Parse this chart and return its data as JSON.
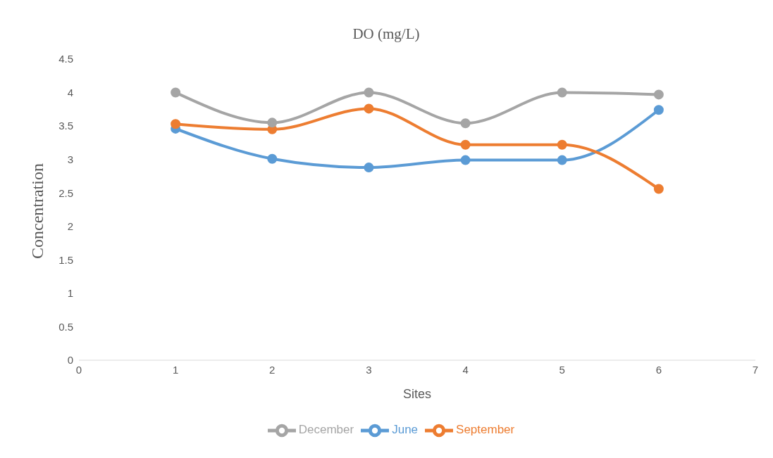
{
  "chart_data": {
    "type": "line",
    "title": "DO (mg/L)",
    "xlabel": "Sites",
    "ylabel": "Concentration",
    "x": [
      1,
      2,
      3,
      4,
      5,
      6
    ],
    "series": [
      {
        "name": "June",
        "color": "#5b9bd5",
        "values": [
          3.46,
          3.01,
          2.88,
          2.99,
          2.99,
          3.74
        ]
      },
      {
        "name": "September",
        "color": "#ed7d31",
        "values": [
          3.53,
          3.45,
          3.76,
          3.22,
          3.22,
          2.56
        ]
      },
      {
        "name": "December",
        "color": "#a5a5a5",
        "values": [
          4.0,
          3.55,
          4.0,
          3.54,
          4.0,
          3.97
        ]
      }
    ],
    "xlim": [
      0,
      7
    ],
    "xticks": [
      0,
      1,
      2,
      3,
      4,
      5,
      6,
      7
    ],
    "ylim": [
      0,
      4.5
    ],
    "yticks": [
      0,
      0.5,
      1,
      1.5,
      2,
      2.5,
      3,
      3.5,
      4,
      4.5
    ],
    "legend": "bottom",
    "marker": "circle",
    "line_style": "solid"
  }
}
